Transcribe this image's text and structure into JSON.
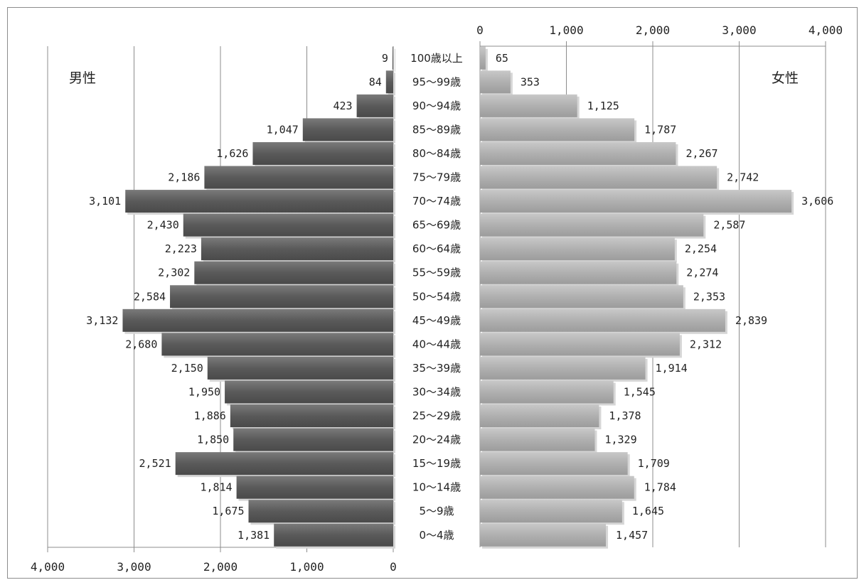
{
  "chart_data": {
    "type": "bar",
    "orientation": "horizontal-population-pyramid",
    "left_label": "男性",
    "right_label": "女性",
    "categories": [
      "100歳以上",
      "95～99歳",
      "90～94歳",
      "85～89歳",
      "80～84歳",
      "75～79歳",
      "70～74歳",
      "65～69歳",
      "60～64歳",
      "55～59歳",
      "50～54歳",
      "45～49歳",
      "40～44歳",
      "35～39歳",
      "30～34歳",
      "25～29歳",
      "20～24歳",
      "15～19歳",
      "10～14歳",
      "5～9歳",
      "0～4歳"
    ],
    "series": [
      {
        "name": "男性",
        "values": [
          9,
          84,
          423,
          1047,
          1626,
          2186,
          3101,
          2430,
          2223,
          2302,
          2584,
          3132,
          2680,
          2150,
          1950,
          1886,
          1850,
          2521,
          1814,
          1675,
          1381
        ],
        "labels": [
          "9",
          "84",
          "423",
          "1,047",
          "1,626",
          "2,186",
          "3,101",
          "2,430",
          "2,223",
          "2,302",
          "2,584",
          "3,132",
          "2,680",
          "2,150",
          "1,950",
          "1,886",
          "1,850",
          "2,521",
          "1,814",
          "1,675",
          "1,381"
        ],
        "color": "#5f5f5f"
      },
      {
        "name": "女性",
        "values": [
          65,
          353,
          1125,
          1787,
          2267,
          2742,
          3606,
          2587,
          2254,
          2274,
          2353,
          2839,
          2312,
          1914,
          1545,
          1378,
          1329,
          1709,
          1784,
          1645,
          1457
        ],
        "labels": [
          "65",
          "353",
          "1,125",
          "1,787",
          "2,267",
          "2,742",
          "3,606",
          "2,587",
          "2,254",
          "2,274",
          "2,353",
          "2,839",
          "2,312",
          "1,914",
          "1,545",
          "1,378",
          "1,329",
          "1,709",
          "1,784",
          "1,645",
          "1,457"
        ],
        "color": "#b4b4b4"
      }
    ],
    "left_axis": {
      "range": [
        0,
        4000
      ],
      "ticks": [
        4000,
        3000,
        2000,
        1000,
        0
      ],
      "tick_labels": [
        "4,000",
        "3,000",
        "2,000",
        "1,000",
        "0"
      ],
      "position": "bottom"
    },
    "right_axis": {
      "range": [
        0,
        4000
      ],
      "ticks": [
        0,
        1000,
        2000,
        3000,
        4000
      ],
      "tick_labels": [
        "0",
        "1,000",
        "2,000",
        "3,000",
        "4,000"
      ],
      "position": "top"
    },
    "grid": true
  }
}
